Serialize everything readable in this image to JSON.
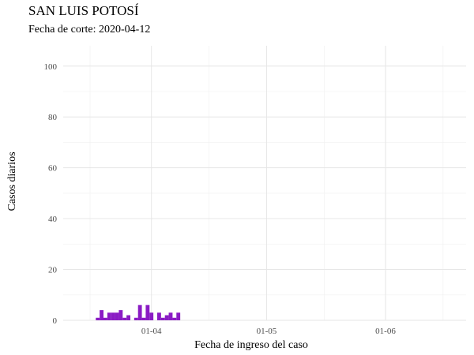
{
  "title": "SAN LUIS POTOSÍ",
  "subtitle": "Fecha de corte: 2020-04-12",
  "chart_data": {
    "type": "bar",
    "xlabel": "Fecha de ingreso del caso",
    "ylabel": "Casos diarios",
    "ylim": [
      0,
      108
    ],
    "xlim": [
      "2020-03-09",
      "2020-06-22"
    ],
    "y_ticks": [
      0,
      20,
      40,
      60,
      80,
      100
    ],
    "x_ticks": [
      {
        "date": "2020-04-01",
        "label": "01-04"
      },
      {
        "date": "2020-05-01",
        "label": "01-05"
      },
      {
        "date": "2020-06-01",
        "label": "01-06"
      }
    ],
    "x_minor_ticks": [
      "2020-03-16",
      "2020-04-16",
      "2020-05-16",
      "2020-06-16"
    ],
    "bar_color": "#8a1bc4",
    "grid": true,
    "legend": "none",
    "series": [
      {
        "dates": [
          "2020-03-18",
          "2020-03-19",
          "2020-03-20",
          "2020-03-21",
          "2020-03-22",
          "2020-03-23",
          "2020-03-24",
          "2020-03-25",
          "2020-03-26",
          "2020-03-28",
          "2020-03-29",
          "2020-03-30",
          "2020-03-31",
          "2020-04-01",
          "2020-04-03",
          "2020-04-04",
          "2020-04-05",
          "2020-04-06",
          "2020-04-07",
          "2020-04-08"
        ],
        "values": [
          1,
          4,
          1,
          3,
          3,
          3,
          4,
          1,
          2,
          1,
          6,
          1,
          6,
          3,
          3,
          1,
          2,
          3,
          1,
          3
        ]
      }
    ]
  }
}
